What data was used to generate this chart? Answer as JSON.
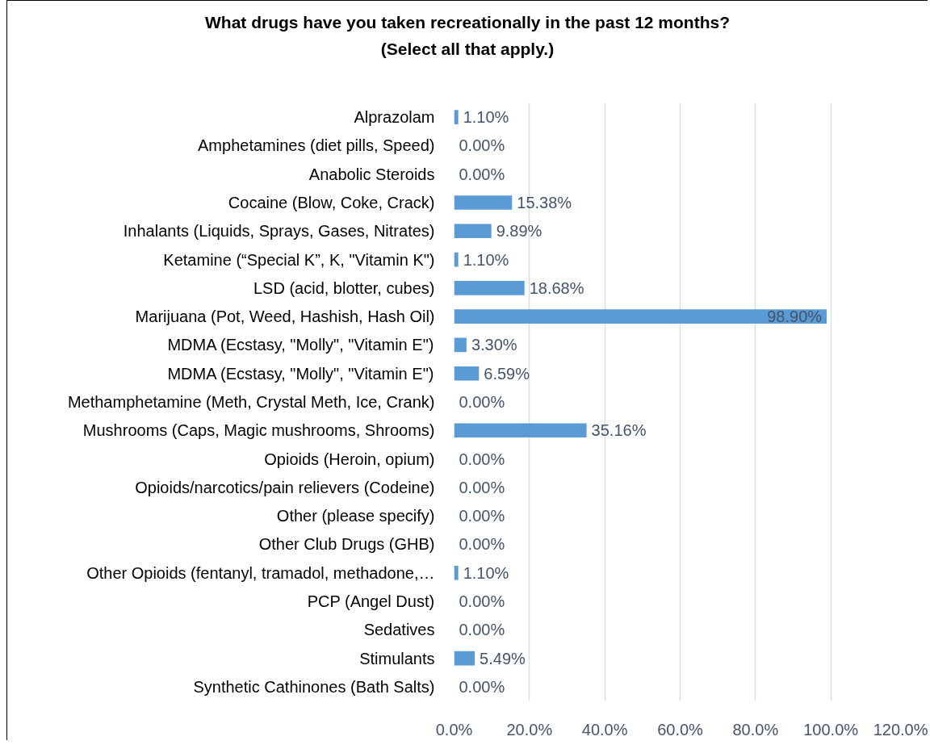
{
  "chart_data": {
    "type": "bar",
    "orientation": "horizontal",
    "title": "What drugs have you taken recreationally in the past 12 months?",
    "subtitle": "(Select all that apply.)",
    "categories": [
      "Alprazolam",
      "Amphetamines (diet pills, Speed)",
      "Anabolic Steroids",
      "Cocaine (Blow, Coke, Crack)",
      "Inhalants (Liquids, Sprays, Gases, Nitrates)",
      "Ketamine (“Special K”, K, \"Vitamin K\")",
      "LSD (acid, blotter, cubes)",
      "Marijuana (Pot, Weed, Hashish, Hash Oil)",
      "MDMA (Ecstasy, \"Molly\", \"Vitamin E\")",
      "MDMA (Ecstasy, \"Molly\", \"Vitamin E\")",
      "Methamphetamine (Meth, Crystal Meth, Ice, Crank)",
      "Mushrooms (Caps, Magic mushrooms, Shrooms)",
      "Opioids (Heroin, opium)",
      "Opioids/narcotics/pain relievers (Codeine)",
      "Other (please specify)",
      "Other Club Drugs (GHB)",
      "Other Opioids (fentanyl, tramadol, methadone,…",
      "PCP (Angel Dust)",
      "Sedatives",
      "Stimulants",
      "Synthetic Cathinones (Bath Salts)"
    ],
    "values": [
      1.1,
      0,
      0,
      15.38,
      9.89,
      1.1,
      18.68,
      98.9,
      3.3,
      6.59,
      0,
      35.16,
      0,
      0,
      0,
      0,
      1.1,
      0,
      0,
      5.49,
      0
    ],
    "value_labels": [
      "1.10%",
      "0.00%",
      "0.00%",
      "15.38%",
      "9.89%",
      "1.10%",
      "18.68%",
      "98.90%",
      "3.30%",
      "6.59%",
      "0.00%",
      "35.16%",
      "0.00%",
      "0.00%",
      "0.00%",
      "0.00%",
      "1.10%",
      "0.00%",
      "0.00%",
      "5.49%",
      "0.00%"
    ],
    "color": "#5b9bd5",
    "xlim": [
      0,
      120
    ],
    "xticks": [
      {
        "value": 0,
        "label": "0.0%"
      },
      {
        "value": 20,
        "label": "20.0%"
      },
      {
        "value": 40,
        "label": "40.0%"
      },
      {
        "value": 60,
        "label": "60.0%"
      },
      {
        "value": 80,
        "label": "80.0%"
      },
      {
        "value": 100,
        "label": "100.0%"
      },
      {
        "value": 120,
        "label": "120.0%"
      }
    ],
    "grid": "x"
  }
}
